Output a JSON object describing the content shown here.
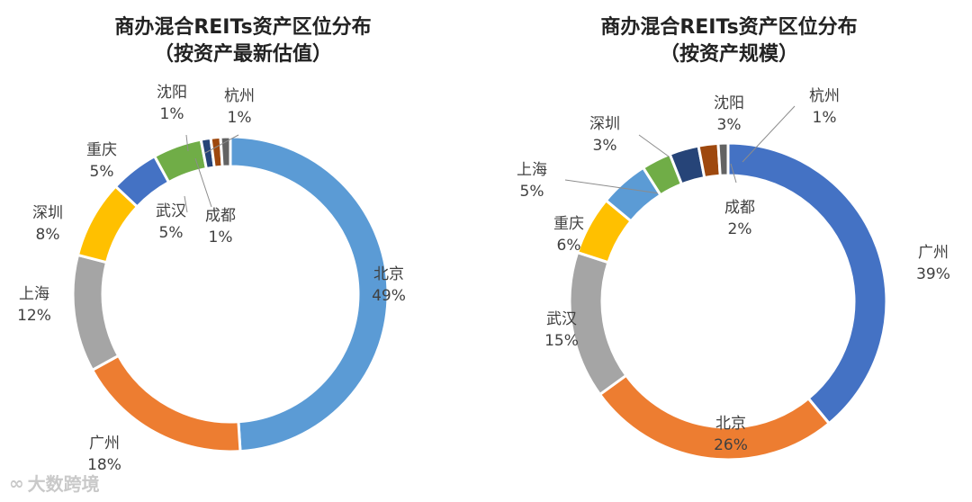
{
  "chart_data": [
    {
      "type": "pie",
      "donut": true,
      "title": "商办混合REITs资产区位分布",
      "subtitle": "（按资产最新估值）",
      "slices": [
        {
          "label": "北京",
          "value_text": "49%",
          "value": 49,
          "color": "#5b9bd5"
        },
        {
          "label": "广州",
          "value_text": "18%",
          "value": 18,
          "color": "#ed7d31"
        },
        {
          "label": "上海",
          "value_text": "12%",
          "value": 12,
          "color": "#a5a5a5"
        },
        {
          "label": "深圳",
          "value_text": "8%",
          "value": 8,
          "color": "#ffc000"
        },
        {
          "label": "重庆",
          "value_text": "5%",
          "value": 5,
          "color": "#4472c4"
        },
        {
          "label": "武汉",
          "value_text": "5%",
          "value": 5,
          "color": "#70ad47"
        },
        {
          "label": "沈阳",
          "value_text": "1%",
          "value": 1,
          "color": "#264478"
        },
        {
          "label": "成都",
          "value_text": "1%",
          "value": 1,
          "color": "#9e480e"
        },
        {
          "label": "杭州",
          "value_text": "1%",
          "value": 1,
          "color": "#636363"
        }
      ]
    },
    {
      "type": "pie",
      "donut": true,
      "title": "商办混合REITs资产区位分布",
      "subtitle": "（按资产规模）",
      "slices": [
        {
          "label": "广州",
          "value_text": "39%",
          "value": 39,
          "color": "#4472c4"
        },
        {
          "label": "北京",
          "value_text": "26%",
          "value": 26,
          "color": "#ed7d31"
        },
        {
          "label": "武汉",
          "value_text": "15%",
          "value": 15,
          "color": "#a5a5a5"
        },
        {
          "label": "重庆",
          "value_text": "6%",
          "value": 6,
          "color": "#ffc000"
        },
        {
          "label": "上海",
          "value_text": "5%",
          "value": 5,
          "color": "#5b9bd5"
        },
        {
          "label": "深圳",
          "value_text": "3%",
          "value": 3,
          "color": "#70ad47"
        },
        {
          "label": "沈阳",
          "value_text": "3%",
          "value": 3,
          "color": "#264478"
        },
        {
          "label": "成都",
          "value_text": "2%",
          "value": 2,
          "color": "#9e480e"
        },
        {
          "label": "杭州",
          "value_text": "1%",
          "value": 1,
          "color": "#636363"
        }
      ]
    }
  ],
  "watermark": {
    "text": "大数跨境"
  }
}
